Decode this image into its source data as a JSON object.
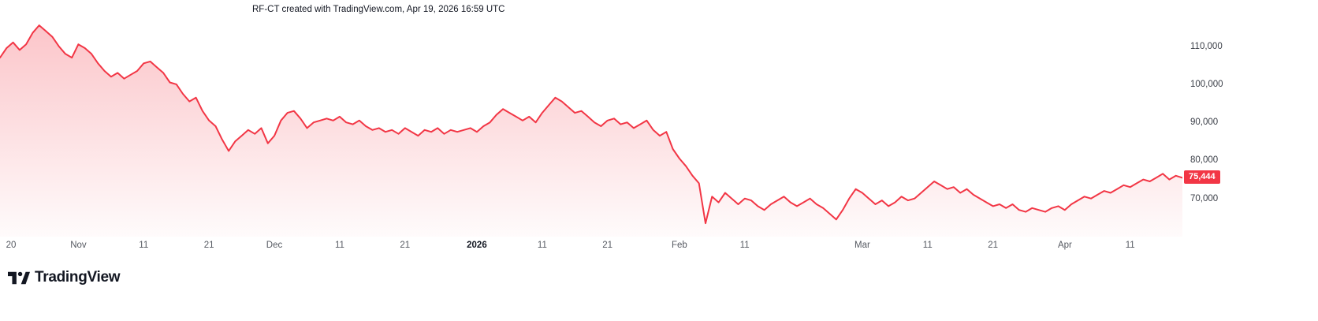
{
  "header": {
    "title": "RF-CT created with TradingView.com, Apr 19, 2026 16:59 UTC"
  },
  "footer": {
    "logo_text": "TradingView"
  },
  "colors": {
    "line": "#F23645",
    "fill_top": "rgba(242,54,69,0.30)",
    "fill_bottom": "rgba(242,54,69,0.02)",
    "badge_bg": "#F23645",
    "badge_text": "#FFFFFF",
    "axis_text": "#555961",
    "title_text": "#131722"
  },
  "chart_data": {
    "type": "area",
    "symbol": "RF-CT",
    "title": "RF-CT created with TradingView.com, Apr 19, 2026 16:59 UTC",
    "x_range": [
      "Oct 20, 2025",
      "Apr 19, 2026"
    ],
    "ylim": [
      60000,
      118000
    ],
    "grid": false,
    "legend_position": "none",
    "line_color": "#F23645",
    "yticks": [
      {
        "label": "110,000",
        "value": 110000
      },
      {
        "label": "100,000",
        "value": 100000
      },
      {
        "label": "90,000",
        "value": 90000
      },
      {
        "label": "80,000",
        "value": 80000
      },
      {
        "label": "70,000",
        "value": 70000
      }
    ],
    "xticks": [
      {
        "label": "20",
        "pos": 0.004,
        "bold": false
      },
      {
        "label": "Nov",
        "pos": 0.0663,
        "bold": false
      },
      {
        "label": "11",
        "pos": 0.1215,
        "bold": false
      },
      {
        "label": "21",
        "pos": 0.1768,
        "bold": false
      },
      {
        "label": "Dec",
        "pos": 0.232,
        "bold": false
      },
      {
        "label": "11",
        "pos": 0.2873,
        "bold": false
      },
      {
        "label": "21",
        "pos": 0.3425,
        "bold": false
      },
      {
        "label": "2026",
        "pos": 0.4033,
        "bold": true
      },
      {
        "label": "11",
        "pos": 0.4586,
        "bold": false
      },
      {
        "label": "21",
        "pos": 0.5138,
        "bold": false
      },
      {
        "label": "Feb",
        "pos": 0.5746,
        "bold": false
      },
      {
        "label": "11",
        "pos": 0.6298,
        "bold": false
      },
      {
        "label": "Mar",
        "pos": 0.7293,
        "bold": false
      },
      {
        "label": "11",
        "pos": 0.7845,
        "bold": false
      },
      {
        "label": "21",
        "pos": 0.8398,
        "bold": false
      },
      {
        "label": "Apr",
        "pos": 0.9006,
        "bold": false
      },
      {
        "label": "11",
        "pos": 0.9558,
        "bold": false
      }
    ],
    "values": [
      107000,
      109500,
      111000,
      109000,
      110500,
      113500,
      115500,
      114000,
      112500,
      110000,
      108000,
      107000,
      110500,
      109500,
      108000,
      105500,
      103500,
      102000,
      103000,
      101500,
      102500,
      103500,
      105500,
      106000,
      104500,
      103000,
      100500,
      100000,
      97500,
      95500,
      96500,
      93000,
      90500,
      89000,
      85500,
      82500,
      85000,
      86500,
      88000,
      87000,
      88500,
      84500,
      86500,
      90500,
      92500,
      93000,
      91000,
      88500,
      90000,
      90500,
      91000,
      90500,
      91500,
      90000,
      89500,
      90500,
      89000,
      88000,
      88500,
      87500,
      88000,
      87000,
      88500,
      87500,
      86500,
      88000,
      87500,
      88500,
      87000,
      88000,
      87500,
      88000,
      88500,
      87500,
      89000,
      90000,
      92000,
      93500,
      92500,
      91500,
      90500,
      91500,
      90000,
      92500,
      94500,
      96500,
      95500,
      94000,
      92500,
      93000,
      91500,
      90000,
      89000,
      90500,
      91000,
      89500,
      90000,
      88500,
      89500,
      90500,
      88000,
      86500,
      87500,
      83000,
      80500,
      78500,
      76000,
      74000,
      63500,
      70500,
      69000,
      71500,
      70000,
      68500,
      70000,
      69500,
      68000,
      67000,
      68500,
      69500,
      70500,
      69000,
      68000,
      69000,
      70000,
      68500,
      67500,
      66000,
      64500,
      67000,
      70000,
      72500,
      71500,
      70000,
      68500,
      69500,
      68000,
      69000,
      70500,
      69500,
      70000,
      71500,
      73000,
      74500,
      73500,
      72500,
      73000,
      71500,
      72500,
      71000,
      70000,
      69000,
      68000,
      68500,
      67500,
      68500,
      67000,
      66500,
      67500,
      67000,
      66500,
      67500,
      68000,
      67000,
      68500,
      69500,
      70500,
      70000,
      71000,
      72000,
      71500,
      72500,
      73500,
      73000,
      74000,
      75000,
      74500,
      75500,
      76500,
      75000,
      76000,
      75444
    ],
    "last_value": 75444,
    "last_value_label": "75,444"
  }
}
